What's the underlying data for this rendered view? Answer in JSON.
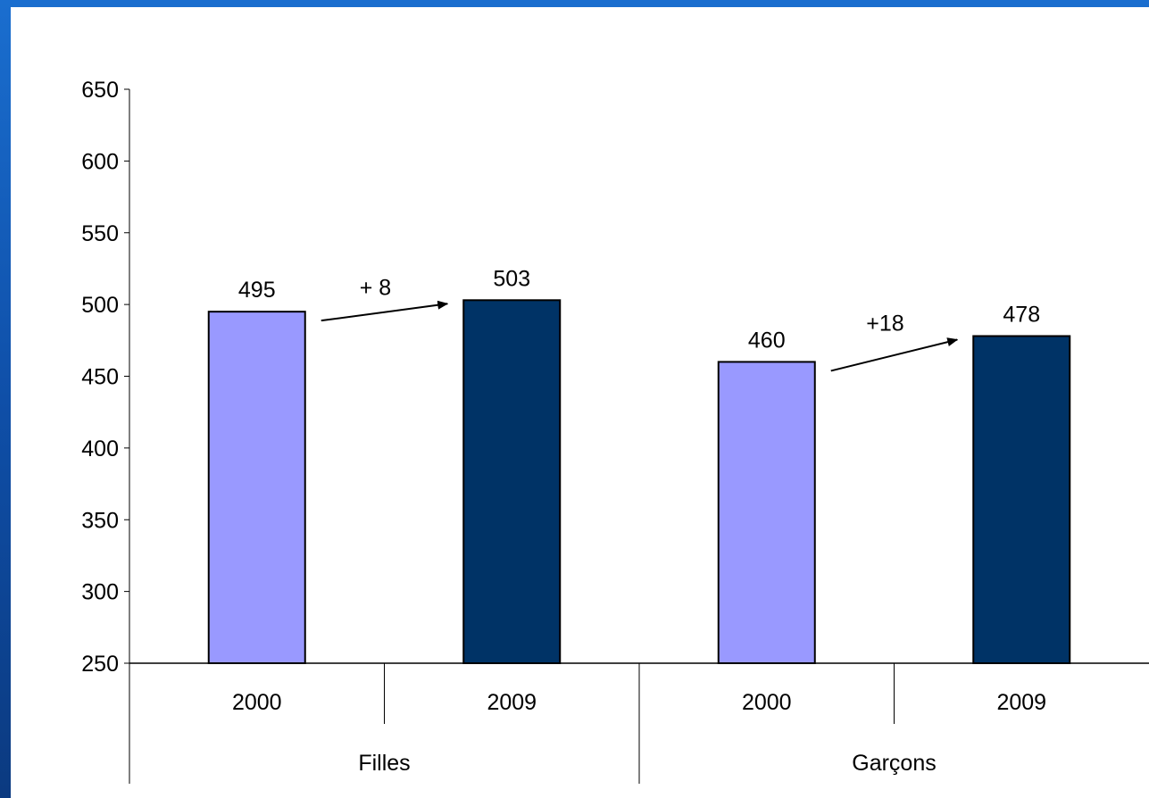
{
  "chart_data": {
    "type": "bar",
    "groups": [
      {
        "label": "Filles",
        "categories": [
          "2000",
          "2009"
        ],
        "values": [
          495,
          503
        ]
      },
      {
        "label": "Garçons",
        "categories": [
          "2000",
          "2009"
        ],
        "values": [
          460,
          478
        ]
      }
    ],
    "series_colors": {
      "2000": "#9999ff",
      "2009": "#003366"
    },
    "ylim": [
      250,
      650
    ],
    "yticks": [
      250,
      300,
      350,
      400,
      450,
      500,
      550,
      600,
      650
    ],
    "annotations": [
      {
        "group": "Filles",
        "text": "+ 8"
      },
      {
        "group": "Garçons",
        "text": "+18"
      }
    ],
    "grid": false,
    "legend": "none"
  }
}
